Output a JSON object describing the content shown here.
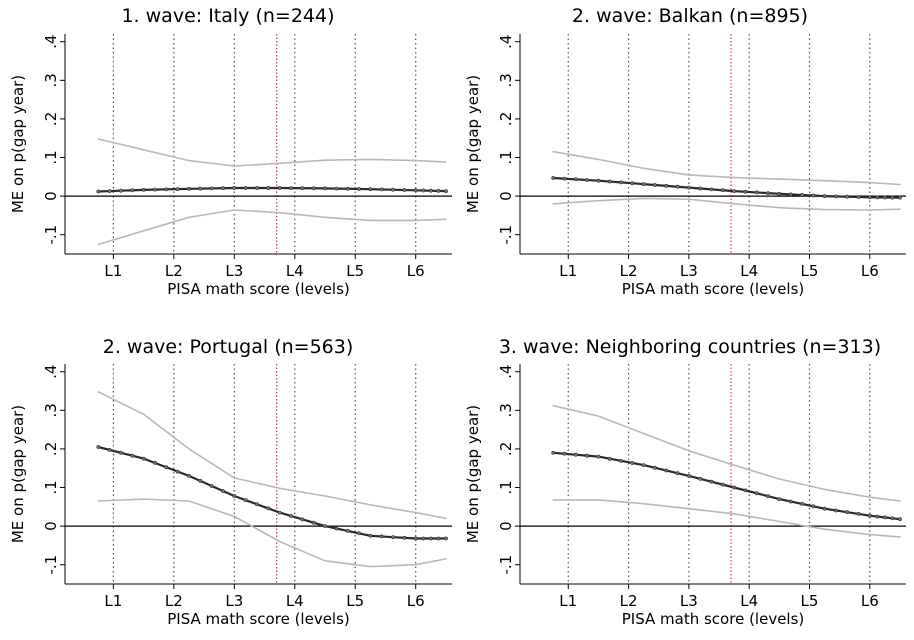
{
  "chart_data": [
    {
      "type": "line",
      "title": "1. wave: Italy (n=244)",
      "xlabel": "PISA math score (levels)",
      "ylabel": "ME on p(gap year)",
      "xlim": [
        0.2,
        6.6
      ],
      "ylim": [
        -0.15,
        0.42
      ],
      "ytick_labels": [
        "-.1",
        "0",
        ".1",
        ".2",
        ".3",
        ".4"
      ],
      "yticks": [
        -0.1,
        0,
        0.1,
        0.2,
        0.3,
        0.4
      ],
      "xtick_labels": [
        "L1",
        "L2",
        "L3",
        "L4",
        "L5",
        "L6"
      ],
      "xticks": [
        1,
        2,
        3,
        4,
        5,
        6
      ],
      "level_lines": [
        1,
        2,
        3,
        4,
        5,
        6
      ],
      "threshold_line": 3.7,
      "x": [
        0.75,
        1.5,
        2.25,
        3.0,
        3.75,
        4.5,
        5.25,
        6.0,
        6.5
      ],
      "series": [
        {
          "role": "estimate",
          "values": [
            0.012,
            0.016,
            0.019,
            0.021,
            0.021,
            0.02,
            0.018,
            0.015,
            0.013
          ]
        },
        {
          "role": "upper",
          "values": [
            0.148,
            0.12,
            0.092,
            0.078,
            0.085,
            0.093,
            0.095,
            0.092,
            0.088
          ]
        },
        {
          "role": "lower",
          "values": [
            -0.125,
            -0.09,
            -0.055,
            -0.036,
            -0.043,
            -0.055,
            -0.063,
            -0.063,
            -0.06
          ]
        }
      ]
    },
    {
      "type": "line",
      "title": "2. wave: Balkan (n=895)",
      "xlabel": "PISA math score (levels)",
      "ylabel": "ME on p(gap year)",
      "xlim": [
        0.2,
        6.6
      ],
      "ylim": [
        -0.15,
        0.42
      ],
      "ytick_labels": [
        "-.1",
        "0",
        ".1",
        ".2",
        ".3",
        ".4"
      ],
      "yticks": [
        -0.1,
        0,
        0.1,
        0.2,
        0.3,
        0.4
      ],
      "xtick_labels": [
        "L1",
        "L2",
        "L3",
        "L4",
        "L5",
        "L6"
      ],
      "xticks": [
        1,
        2,
        3,
        4,
        5,
        6
      ],
      "level_lines": [
        1,
        2,
        3,
        4,
        5,
        6
      ],
      "threshold_line": 3.7,
      "x": [
        0.75,
        1.5,
        2.25,
        3.0,
        3.75,
        4.5,
        5.25,
        6.0,
        6.5
      ],
      "series": [
        {
          "role": "estimate",
          "values": [
            0.047,
            0.04,
            0.031,
            0.022,
            0.013,
            0.006,
            0.0,
            -0.003,
            -0.004
          ]
        },
        {
          "role": "upper",
          "values": [
            0.115,
            0.095,
            0.072,
            0.055,
            0.048,
            0.044,
            0.04,
            0.035,
            0.03
          ]
        },
        {
          "role": "lower",
          "values": [
            -0.02,
            -0.012,
            -0.006,
            -0.008,
            -0.02,
            -0.03,
            -0.035,
            -0.036,
            -0.034
          ]
        }
      ]
    },
    {
      "type": "line",
      "title": "2. wave: Portugal (n=563)",
      "xlabel": "PISA math score (levels)",
      "ylabel": "ME on p(gap year)",
      "xlim": [
        0.2,
        6.6
      ],
      "ylim": [
        -0.15,
        0.42
      ],
      "ytick_labels": [
        "-.1",
        "0",
        ".1",
        ".2",
        ".3",
        ".4"
      ],
      "yticks": [
        -0.1,
        0,
        0.1,
        0.2,
        0.3,
        0.4
      ],
      "xtick_labels": [
        "L1",
        "L2",
        "L3",
        "L4",
        "L5",
        "L6"
      ],
      "xticks": [
        1,
        2,
        3,
        4,
        5,
        6
      ],
      "level_lines": [
        1,
        2,
        3,
        4,
        5,
        6
      ],
      "threshold_line": 3.7,
      "x": [
        0.75,
        1.5,
        2.25,
        3.0,
        3.75,
        4.5,
        5.25,
        6.0,
        6.5
      ],
      "series": [
        {
          "role": "estimate",
          "values": [
            0.205,
            0.175,
            0.13,
            0.078,
            0.035,
            0.0,
            -0.025,
            -0.032,
            -0.032
          ]
        },
        {
          "role": "upper",
          "values": [
            0.348,
            0.29,
            0.2,
            0.125,
            0.098,
            0.078,
            0.055,
            0.035,
            0.02
          ]
        },
        {
          "role": "lower",
          "values": [
            0.065,
            0.07,
            0.065,
            0.025,
            -0.04,
            -0.09,
            -0.105,
            -0.1,
            -0.085
          ]
        }
      ]
    },
    {
      "type": "line",
      "title": "3. wave: Neighboring countries (n=313)",
      "xlabel": "PISA math score (levels)",
      "ylabel": "ME on p(gap year)",
      "xlim": [
        0.2,
        6.6
      ],
      "ylim": [
        -0.15,
        0.42
      ],
      "ytick_labels": [
        "-.1",
        "0",
        ".1",
        ".2",
        ".3",
        ".4"
      ],
      "yticks": [
        -0.1,
        0,
        0.1,
        0.2,
        0.3,
        0.4
      ],
      "xtick_labels": [
        "L1",
        "L2",
        "L3",
        "L4",
        "L5",
        "L6"
      ],
      "xticks": [
        1,
        2,
        3,
        4,
        5,
        6
      ],
      "level_lines": [
        1,
        2,
        3,
        4,
        5,
        6
      ],
      "threshold_line": 3.7,
      "x": [
        0.75,
        1.5,
        2.25,
        3.0,
        3.75,
        4.5,
        5.25,
        6.0,
        6.5
      ],
      "series": [
        {
          "role": "estimate",
          "values": [
            0.19,
            0.18,
            0.158,
            0.13,
            0.1,
            0.07,
            0.045,
            0.027,
            0.018
          ]
        },
        {
          "role": "upper",
          "values": [
            0.312,
            0.285,
            0.24,
            0.195,
            0.158,
            0.122,
            0.095,
            0.075,
            0.065
          ]
        },
        {
          "role": "lower",
          "values": [
            0.068,
            0.068,
            0.058,
            0.045,
            0.032,
            0.012,
            -0.008,
            -0.022,
            -0.028
          ]
        }
      ]
    }
  ],
  "colors": {
    "estimate": "#2b2b2b",
    "band": "#b8b8b8",
    "level_line": "#555555",
    "threshold_line": "#e03c31",
    "axis": "#000000"
  }
}
